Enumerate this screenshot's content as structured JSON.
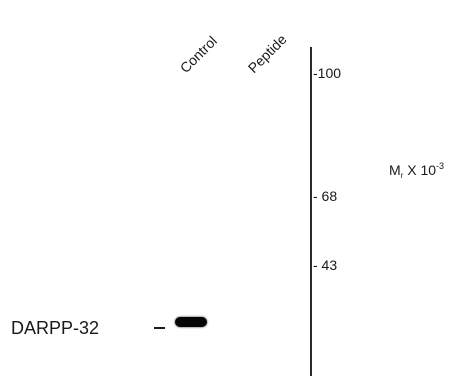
{
  "lanes": [
    {
      "label": "Control"
    },
    {
      "label": "Peptide"
    }
  ],
  "markers": {
    "m100": "-100",
    "m68": "- 68",
    "m43": "- 43"
  },
  "mr_label": {
    "prefix": "M",
    "sub": "r",
    "middle": " X 10",
    "sup": "-3"
  },
  "protein_label": "DARPP-32",
  "colors": {
    "band": "#050505",
    "axis": "#2a2a2a",
    "text": "#1a1a1a"
  }
}
